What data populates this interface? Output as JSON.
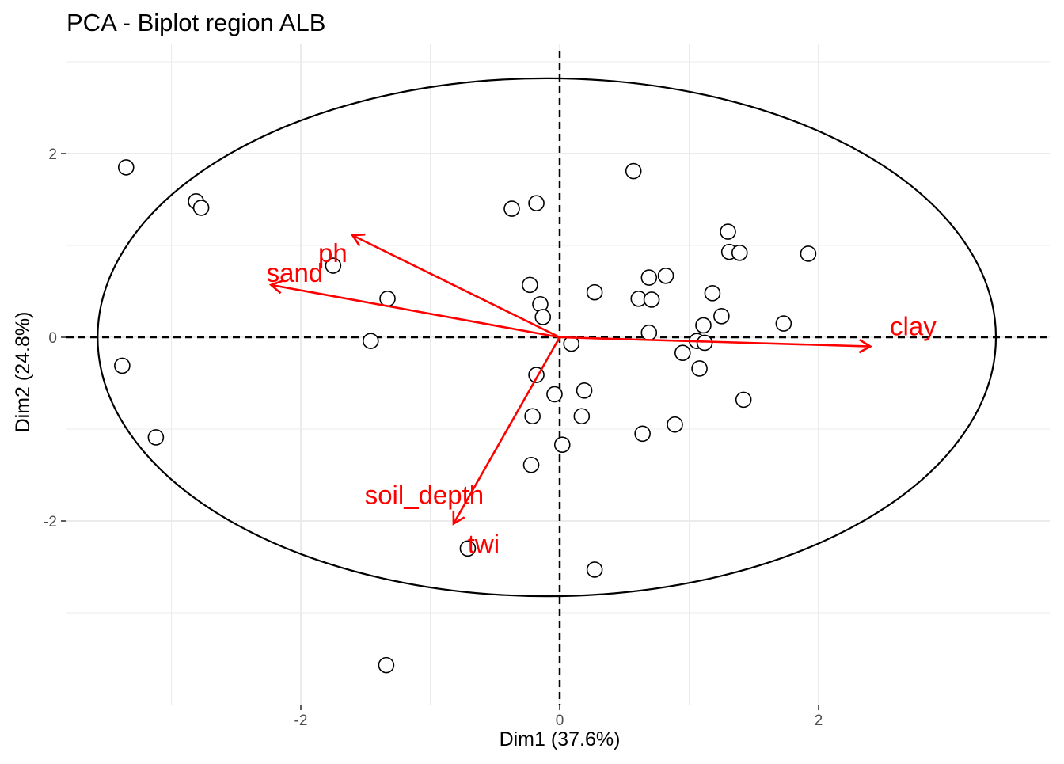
{
  "chart_data": {
    "type": "scatter",
    "subtype": "pca-biplot",
    "title": "PCA - Biplot region ALB",
    "xlabel": "Dim1 (37.6%)",
    "ylabel": "Dim2 (24.8%)",
    "xlim": [
      -3.8,
      3.8
    ],
    "ylim": [
      -3.85,
      3.2
    ],
    "xticks": [
      -2,
      0,
      2
    ],
    "yticks": [
      -2,
      0,
      2
    ],
    "grid": true,
    "reference_lines": {
      "x": 0,
      "y": 0,
      "style": "dashed"
    },
    "colors": {
      "points_stroke": "#000000",
      "variables": "#ff0000",
      "grid": "#ebebeb",
      "ellipse": "#000000"
    },
    "ellipse": {
      "cx": -0.1,
      "cy": 0,
      "rx": 3.47,
      "ry": 2.82
    },
    "points": [
      {
        "x": -3.35,
        "y": 1.85
      },
      {
        "x": -2.81,
        "y": 1.48
      },
      {
        "x": -2.77,
        "y": 1.41
      },
      {
        "x": -1.75,
        "y": 0.78
      },
      {
        "x": -1.33,
        "y": 0.42
      },
      {
        "x": -1.46,
        "y": -0.04
      },
      {
        "x": -3.38,
        "y": -0.31
      },
      {
        "x": -3.12,
        "y": -1.09
      },
      {
        "x": -0.71,
        "y": -2.3
      },
      {
        "x": -1.34,
        "y": -3.57
      },
      {
        "x": -0.37,
        "y": 1.4
      },
      {
        "x": -0.18,
        "y": 1.46
      },
      {
        "x": -0.23,
        "y": 0.57
      },
      {
        "x": -0.15,
        "y": 0.36
      },
      {
        "x": -0.13,
        "y": 0.22
      },
      {
        "x": 0.09,
        "y": -0.07
      },
      {
        "x": -0.18,
        "y": -0.41
      },
      {
        "x": -0.04,
        "y": -0.62
      },
      {
        "x": -0.21,
        "y": -0.86
      },
      {
        "x": 0.19,
        "y": -0.58
      },
      {
        "x": 0.17,
        "y": -0.86
      },
      {
        "x": 0.02,
        "y": -1.17
      },
      {
        "x": -0.22,
        "y": -1.39
      },
      {
        "x": 0.27,
        "y": -2.53
      },
      {
        "x": 0.57,
        "y": 1.81
      },
      {
        "x": 0.27,
        "y": 0.49
      },
      {
        "x": 0.69,
        "y": 0.65
      },
      {
        "x": 0.82,
        "y": 0.67
      },
      {
        "x": 0.61,
        "y": 0.42
      },
      {
        "x": 0.71,
        "y": 0.41
      },
      {
        "x": 0.69,
        "y": 0.05
      },
      {
        "x": 0.64,
        "y": -1.05
      },
      {
        "x": 0.89,
        "y": -0.95
      },
      {
        "x": 0.95,
        "y": -0.17
      },
      {
        "x": 1.06,
        "y": -0.04
      },
      {
        "x": 1.12,
        "y": -0.06
      },
      {
        "x": 1.08,
        "y": -0.34
      },
      {
        "x": 1.11,
        "y": 0.13
      },
      {
        "x": 1.25,
        "y": 0.23
      },
      {
        "x": 1.18,
        "y": 0.48
      },
      {
        "x": 1.3,
        "y": 1.15
      },
      {
        "x": 1.31,
        "y": 0.93
      },
      {
        "x": 1.39,
        "y": 0.92
      },
      {
        "x": 1.42,
        "y": -0.68
      },
      {
        "x": 1.73,
        "y": 0.15
      },
      {
        "x": 1.92,
        "y": 0.91
      }
    ],
    "variables": [
      {
        "name": "clay",
        "x": 2.4,
        "y": -0.1
      },
      {
        "name": "sand",
        "x": -2.23,
        "y": 0.57
      },
      {
        "name": "ph",
        "x": -1.6,
        "y": 1.11
      },
      {
        "name": "soil_depth",
        "x": -0.82,
        "y": -2.03
      },
      {
        "name": "twi",
        "x": -0.82,
        "y": -2.03
      }
    ]
  }
}
